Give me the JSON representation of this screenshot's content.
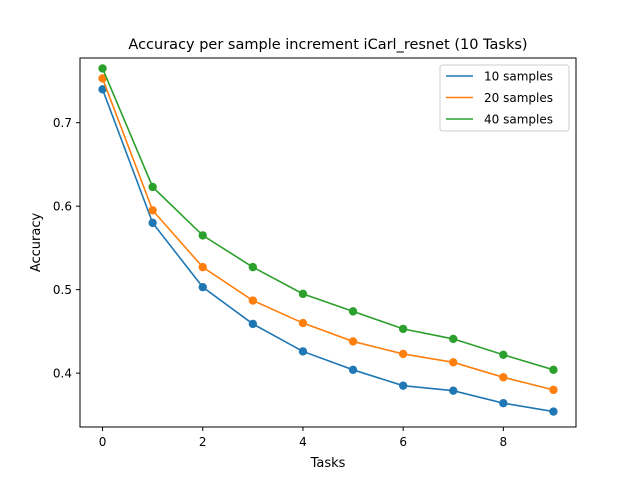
{
  "chart_data": {
    "type": "line",
    "title": "Accuracy per sample increment iCarl_resnet (10 Tasks)",
    "xlabel": "Tasks",
    "ylabel": "Accuracy",
    "x": [
      0,
      1,
      2,
      3,
      4,
      5,
      6,
      7,
      8,
      9
    ],
    "xlim": [
      -0.45,
      9.45
    ],
    "ylim": [
      0.3355,
      0.7775
    ],
    "xticks": [
      0,
      2,
      4,
      6,
      8
    ],
    "yticks": [
      0.4,
      0.5,
      0.6,
      0.7
    ],
    "xtick_labels": [
      "0",
      "2",
      "4",
      "6",
      "8"
    ],
    "ytick_labels": [
      "0.4",
      "0.5",
      "0.6",
      "0.7"
    ],
    "grid": false,
    "legend_position": "top-right",
    "series": [
      {
        "name": "10 samples",
        "color": "#1f77b4",
        "values": [
          0.74,
          0.58,
          0.503,
          0.459,
          0.426,
          0.404,
          0.385,
          0.379,
          0.364,
          0.354
        ]
      },
      {
        "name": "20 samples",
        "color": "#ff7f0e",
        "values": [
          0.753,
          0.595,
          0.527,
          0.487,
          0.46,
          0.438,
          0.423,
          0.413,
          0.395,
          0.38
        ]
      },
      {
        "name": "40 samples",
        "color": "#2ca02c",
        "values": [
          0.765,
          0.623,
          0.565,
          0.527,
          0.495,
          0.474,
          0.453,
          0.441,
          0.422,
          0.404
        ]
      }
    ]
  }
}
